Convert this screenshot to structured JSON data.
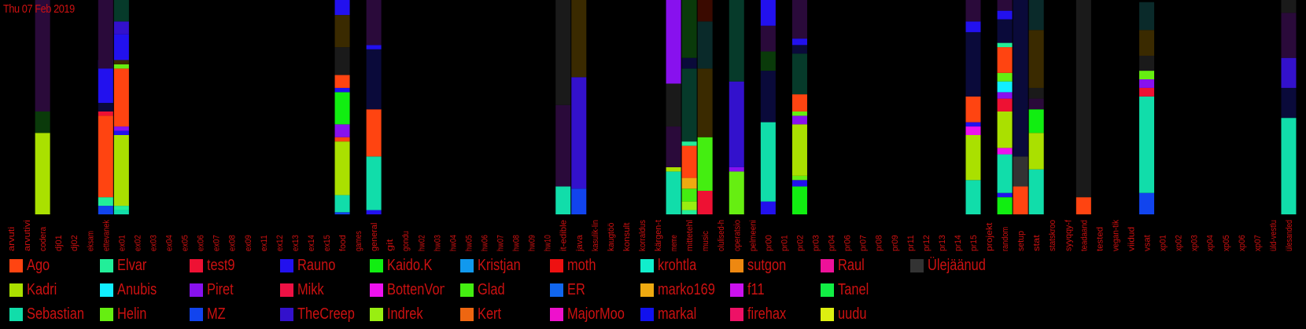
{
  "date_label": "Thu 07 Feb 2019",
  "chart_data": {
    "type": "bar",
    "stacked": true,
    "grid": false,
    "legend_position": "bottom",
    "ylim": [
      0,
      1
    ],
    "categories": [
      "arvuti",
      "arvutivi",
      "codera",
      "dj01",
      "dj02",
      "eksam",
      "ettevanek",
      "ex01",
      "ex02",
      "ex03",
      "ex04",
      "ex05",
      "ex06",
      "ex07",
      "ex08",
      "ex09",
      "ex11",
      "ex12",
      "ex13",
      "ex14",
      "ex15",
      "food",
      "games",
      "general",
      "git",
      "gondu",
      "hw02",
      "hw03",
      "hw04",
      "hw05",
      "hw06",
      "hw07",
      "hw08",
      "hw09",
      "hw10",
      "it-edible",
      "java",
      "kasulik-lin",
      "kaugtöö",
      "konsult",
      "korraldus",
      "kärgen-t",
      "meme",
      "mittetehl",
      "music",
      "olulised-h",
      "operatsio",
      "pelmeeni",
      "pr00",
      "pr01",
      "pr02",
      "pr03",
      "pr04",
      "pr06",
      "pr07",
      "pr08",
      "pr09",
      "pr11",
      "pr12",
      "pr13",
      "pr14",
      "pr15",
      "projekt",
      "random",
      "setup",
      "stat",
      "statskroo",
      "syyqqy-f",
      "teadaand",
      "tested",
      "vegan-tik",
      "viidud",
      "vsat",
      "xp01",
      "xp02",
      "xp03",
      "xp04",
      "xp05",
      "xp06",
      "xp07",
      "üld-vestlu",
      "ülesanded"
    ],
    "series": [
      {
        "name": "Ago",
        "color": "#ff4411"
      },
      {
        "name": "Kadri",
        "color": "#aae000"
      },
      {
        "name": "Sebastian",
        "color": "#11ddaa"
      },
      {
        "name": "Elvar",
        "color": "#22ee99"
      },
      {
        "name": "Anubis",
        "color": "#11eeff"
      },
      {
        "name": "Helin",
        "color": "#66ee11"
      },
      {
        "name": "test9",
        "color": "#ee1133"
      },
      {
        "name": "Piret",
        "color": "#8811ee"
      },
      {
        "name": "MZ",
        "color": "#1144ee"
      },
      {
        "name": "Rauno",
        "color": "#2211ee"
      },
      {
        "name": "Mikk",
        "color": "#ee1144"
      },
      {
        "name": "TheCreepySh",
        "color": "#3311cc"
      },
      {
        "name": "Kaido.K",
        "color": "#11ee11"
      },
      {
        "name": "BottenVonBot",
        "color": "#ee11ee"
      },
      {
        "name": "Indrek",
        "color": "#99ee11"
      },
      {
        "name": "Kristjan",
        "color": "#1199ee"
      },
      {
        "name": "Glad",
        "color": "#44ee11"
      },
      {
        "name": "Kert",
        "color": "#ee6611"
      },
      {
        "name": "moth",
        "color": "#ee1111"
      },
      {
        "name": "ER",
        "color": "#1166ee"
      },
      {
        "name": "MajorMoopsy",
        "color": "#ee11cc"
      },
      {
        "name": "krohtla",
        "color": "#11eecc"
      },
      {
        "name": "marko169",
        "color": "#eeaa11"
      },
      {
        "name": "markal",
        "color": "#1111ee"
      },
      {
        "name": "sutgon",
        "color": "#ee8811"
      },
      {
        "name": "f11",
        "color": "#cc11ee"
      },
      {
        "name": "firehax",
        "color": "#ee1166"
      },
      {
        "name": "Raul",
        "color": "#ee1199"
      },
      {
        "name": "Tanel",
        "color": "#11ee44"
      },
      {
        "name": "uudu",
        "color": "#ddee11"
      },
      {
        "name": "Ülejäänud",
        "color": "#333333"
      }
    ],
    "columns": [
      {
        "category": "codera",
        "segments": [
          [
            "Kadri",
            0.38
          ],
          [
            "other",
            0.1
          ],
          [
            "other",
            0.52
          ]
        ]
      },
      {
        "category": "ettevanek",
        "segments": [
          [
            "MZ",
            0.04
          ],
          [
            "Elvar",
            0.04
          ],
          [
            "Ago",
            0.38
          ],
          [
            "test9",
            0.02
          ],
          [
            "other",
            0.04
          ],
          [
            "Rauno",
            0.2
          ],
          [
            "other",
            0.32
          ]
        ]
      },
      {
        "category": "ex01",
        "segments": [
          [
            "Sebastian",
            0.02
          ],
          [
            "Elvar",
            0.02
          ],
          [
            "Kadri",
            0.33
          ],
          [
            "Rauno",
            0.02
          ],
          [
            "Piret",
            0.02
          ],
          [
            "Ago",
            0.27
          ],
          [
            "Helin",
            0.02
          ],
          [
            "other",
            0.02
          ],
          [
            "Rauno",
            0.12
          ],
          [
            "TheCreepySh",
            0.06
          ],
          [
            "other",
            0.1
          ]
        ]
      },
      {
        "category": "food",
        "segments": [
          [
            "MZ",
            0.01
          ],
          [
            "Sebastian",
            0.08
          ],
          [
            "Kadri",
            0.25
          ],
          [
            "Ago",
            0.02
          ],
          [
            "Piret",
            0.06
          ],
          [
            "Kaido.K",
            0.15
          ],
          [
            "Rauno",
            0.02
          ],
          [
            "Ago",
            0.06
          ],
          [
            "other",
            0.13
          ],
          [
            "other",
            0.15
          ],
          [
            "Rauno",
            0.07
          ]
        ]
      },
      {
        "category": "general",
        "segments": [
          [
            "Rauno",
            0.02
          ],
          [
            "Sebastian",
            0.25
          ],
          [
            "Ago",
            0.22
          ],
          [
            "other",
            0.28
          ],
          [
            "Rauno",
            0.02
          ],
          [
            "other",
            0.21
          ]
        ]
      },
      {
        "category": "it-edible",
        "segments": [
          [
            "Sebastian",
            0.13
          ],
          [
            "other",
            0.38
          ],
          [
            "other",
            0.49
          ]
        ]
      },
      {
        "category": "java",
        "segments": [
          [
            "MZ",
            0.12
          ],
          [
            "TheCreepySh",
            0.52
          ],
          [
            "other",
            0.36
          ]
        ]
      },
      {
        "category": "meme",
        "segments": [
          [
            "Sebastian",
            0.2
          ],
          [
            "Kadri",
            0.02
          ],
          [
            "other",
            0.19
          ],
          [
            "other",
            0.2
          ],
          [
            "Piret",
            0.39
          ]
        ]
      },
      {
        "category": "mittetehl",
        "segments": [
          [
            "Elvar",
            0.02
          ],
          [
            "Indrek",
            0.04
          ],
          [
            "Glad",
            0.06
          ],
          [
            "marko169",
            0.05
          ],
          [
            "Ago",
            0.15
          ],
          [
            "Elvar",
            0.02
          ],
          [
            "other",
            0.34
          ],
          [
            "other",
            0.05
          ],
          [
            "other",
            0.27
          ]
        ]
      },
      {
        "category": "music",
        "segments": [
          [
            "test9",
            0.11
          ],
          [
            "Glad",
            0.25
          ],
          [
            "other",
            0.32
          ],
          [
            "other",
            0.22
          ],
          [
            "other",
            0.1
          ]
        ]
      },
      {
        "category": "operatsio",
        "segments": [
          [
            "Helin",
            0.2
          ],
          [
            "Piret",
            0.02
          ],
          [
            "TheCreepySh",
            0.4
          ],
          [
            "other",
            0.38
          ]
        ]
      },
      {
        "category": "pr00",
        "segments": [
          [
            "Rauno",
            0.06
          ],
          [
            "Sebastian",
            0.37
          ],
          [
            "other",
            0.24
          ],
          [
            "other",
            0.09
          ],
          [
            "other",
            0.12
          ],
          [
            "Rauno",
            0.12
          ]
        ]
      },
      {
        "category": "pr02",
        "segments": [
          [
            "Kaido.K",
            0.13
          ],
          [
            "Rauno",
            0.03
          ],
          [
            "Helin",
            0.02
          ],
          [
            "Kadri",
            0.24
          ],
          [
            "Piret",
            0.04
          ],
          [
            "Helin",
            0.02
          ],
          [
            "Ago",
            0.08
          ],
          [
            "other",
            0.19
          ],
          [
            "other",
            0.04
          ],
          [
            "Rauno",
            0.03
          ],
          [
            "other",
            0.18
          ]
        ]
      },
      {
        "category": "pr15",
        "segments": [
          [
            "Sebastian",
            0.16
          ],
          [
            "Kadri",
            0.21
          ],
          [
            "BottenVonBot",
            0.04
          ],
          [
            "Rauno",
            0.02
          ],
          [
            "Ago",
            0.12
          ],
          [
            "other",
            0.3
          ],
          [
            "Rauno",
            0.05
          ],
          [
            "other",
            0.1
          ]
        ]
      },
      {
        "category": "random",
        "segments": [
          [
            "Kaido.K",
            0.08
          ],
          [
            "Rauno",
            0.02
          ],
          [
            "Sebastian",
            0.18
          ],
          [
            "BottenVonBot",
            0.03
          ],
          [
            "Kadri",
            0.17
          ],
          [
            "test9",
            0.06
          ],
          [
            "Piret",
            0.03
          ],
          [
            "Anubis",
            0.05
          ],
          [
            "Helin",
            0.04
          ],
          [
            "Ago",
            0.12
          ],
          [
            "Elvar",
            0.02
          ],
          [
            "other",
            0.11
          ],
          [
            "Rauno",
            0.04
          ],
          [
            "other",
            0.05
          ]
        ]
      },
      {
        "category": "setup",
        "segments": [
          [
            "Ago",
            0.13
          ],
          [
            "Ülejäänud",
            0.14
          ],
          [
            "other",
            0.73
          ]
        ]
      },
      {
        "category": "stat",
        "segments": [
          [
            "Sebastian",
            0.21
          ],
          [
            "Kadri",
            0.17
          ],
          [
            "Kaido.K",
            0.11
          ],
          [
            "other",
            0.05
          ],
          [
            "other",
            0.05
          ],
          [
            "other",
            0.27
          ],
          [
            "other",
            0.14
          ]
        ]
      },
      {
        "category": "teadaand",
        "segments": [
          [
            "Ago",
            0.08
          ],
          [
            "other",
            0.92
          ]
        ]
      },
      {
        "category": "vsat",
        "segments": [
          [
            "MZ",
            0.1
          ],
          [
            "Sebastian",
            0.45
          ],
          [
            "test9",
            0.04
          ],
          [
            "Piret",
            0.04
          ],
          [
            "Helin",
            0.04
          ],
          [
            "other",
            0.07
          ],
          [
            "other",
            0.12
          ],
          [
            "other",
            0.13
          ]
        ]
      },
      {
        "category": "ülesanded",
        "segments": [
          [
            "Sebastian",
            0.45
          ],
          [
            "other",
            0.14
          ],
          [
            "TheCreepySh",
            0.14
          ],
          [
            "other",
            0.21
          ],
          [
            "other",
            0.06
          ]
        ]
      }
    ]
  }
}
